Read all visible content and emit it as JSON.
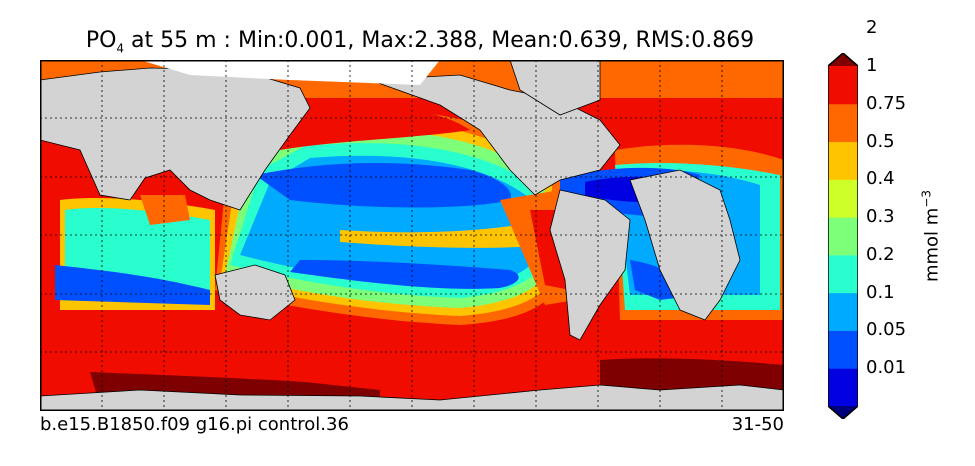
{
  "title": {
    "variable": "PO",
    "subscript": "4",
    "rest": " at 55 m : Min:0.001, Max:2.388, Mean:0.639, RMS:0.869"
  },
  "footer": {
    "case": "b.e15.B1850.f09 g16.pi control.36",
    "years": "31-50"
  },
  "colorbar": {
    "units": "mmol m",
    "units_exponent": "−3",
    "tick_labels": [
      "0.01",
      "0.05",
      "0.1",
      "0.2",
      "0.3",
      "0.4",
      "0.5",
      "0.75",
      "1",
      "2"
    ],
    "colors": [
      "#00007f",
      "#0000e0",
      "#0050ff",
      "#00aaff",
      "#29ffce",
      "#7dff7a",
      "#ceff29",
      "#ffc400",
      "#ff6800",
      "#f00d00",
      "#7f0000"
    ],
    "extend": "both"
  },
  "map": {
    "land_color": "#d3d3d3",
    "no_data_color": "#ffffff",
    "gridlines": "dashed",
    "projection": "global"
  }
}
